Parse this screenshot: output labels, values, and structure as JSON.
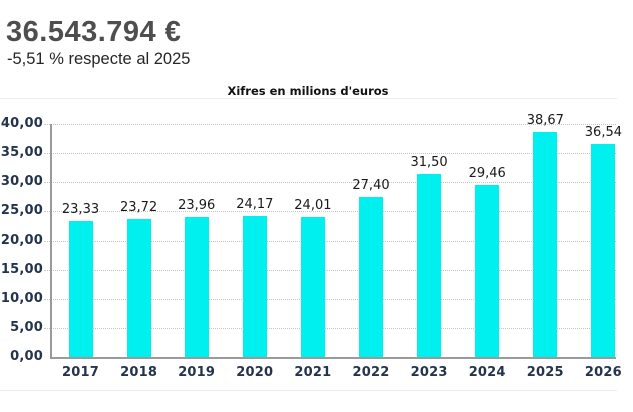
{
  "header": {
    "amount": "36.543.794 €",
    "change": "-5,51 % respecte al 2025"
  },
  "chart_data": {
    "type": "bar",
    "title": "Xifres en milions d'euros",
    "categories": [
      "2017",
      "2018",
      "2019",
      "2020",
      "2021",
      "2022",
      "2023",
      "2024",
      "2025",
      "2026"
    ],
    "values": [
      23.33,
      23.72,
      23.96,
      24.17,
      24.01,
      27.4,
      31.5,
      29.46,
      38.67,
      36.54
    ],
    "value_labels": [
      "23,33",
      "23,72",
      "23,96",
      "24,17",
      "24,01",
      "27,40",
      "31,50",
      "29,46",
      "38,67",
      "36,54"
    ],
    "xlabel": "",
    "ylabel": "",
    "ylim": [
      0,
      40
    ],
    "y_tick_values": [
      0,
      5,
      10,
      15,
      20,
      25,
      30,
      35,
      40
    ],
    "y_tick_labels": [
      "0,00",
      "5,00",
      "10,00",
      "15,00",
      "20,00",
      "25,00",
      "30,00",
      "35,00",
      "40,00"
    ],
    "grid": true,
    "legend": false,
    "bar_color": "#00f0f0",
    "axis_label_color": "#24344d",
    "value_label_color": "#1a1a1a",
    "grid_color": "#c6c6c6",
    "axis_line_color": "#9a9a9a"
  }
}
